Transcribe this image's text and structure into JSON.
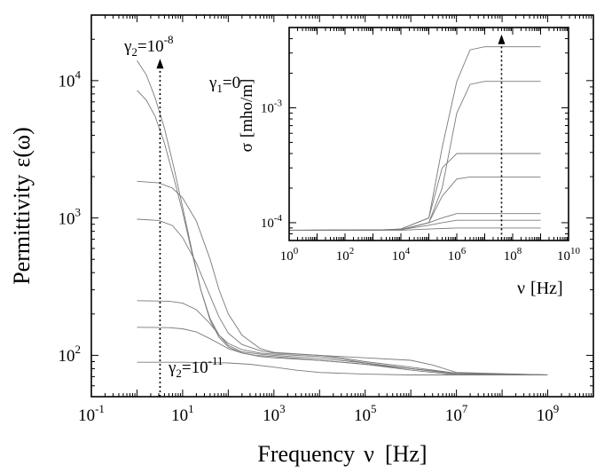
{
  "chart_data": [
    {
      "type": "line",
      "xlabel_parts": {
        "label": "Frequency",
        "symbol": "ν",
        "unit": "[Hz]"
      },
      "ylabel_parts": {
        "label": "Permittivity",
        "symbol": "ε(ω)"
      },
      "x_scale": "log",
      "y_scale": "log",
      "xlim": [
        0.1,
        10000000000
      ],
      "ylim": [
        50,
        30000
      ],
      "x_ticks": [
        {
          "v": 0.1,
          "base": "10",
          "exp": "-1"
        },
        {
          "v": 10,
          "base": "10",
          "exp": "1"
        },
        {
          "v": 1000,
          "base": "10",
          "exp": "3"
        },
        {
          "v": 100000,
          "base": "10",
          "exp": "5"
        },
        {
          "v": 10000000,
          "base": "10",
          "exp": "7"
        },
        {
          "v": 1000000000,
          "base": "10",
          "exp": "9"
        }
      ],
      "y_ticks": [
        {
          "v": 100,
          "base": "10",
          "exp": "2"
        },
        {
          "v": 1000,
          "base": "10",
          "exp": "3"
        },
        {
          "v": 10000,
          "base": "10",
          "exp": "4"
        }
      ],
      "annotations": {
        "gamma2_top": {
          "pre": "γ",
          "sub": "2",
          "mid": "=10",
          "sup": "-8"
        },
        "gamma2_bottom": {
          "pre": "γ",
          "sub": "2",
          "mid": "=10",
          "sup": "-11"
        },
        "gamma1": {
          "pre": "γ",
          "sub": "1",
          "post": "=0"
        }
      },
      "arrow": {
        "x": 3.2,
        "y_from": 50,
        "y_to": 14000,
        "direction": "up"
      },
      "series": [
        {
          "x": [
            1,
            1.6,
            2.5,
            4,
            6.3,
            10,
            16,
            25,
            40,
            63,
            100,
            200,
            400,
            1000,
            10000,
            100000,
            1000000,
            10000000,
            1000000000
          ],
          "values": [
            14000,
            11000,
            7500,
            4500,
            2400,
            1200,
            580,
            300,
            180,
            135,
            115,
            104,
            100,
            98,
            92,
            86,
            78,
            72,
            72
          ]
        },
        {
          "x": [
            1,
            1.6,
            2.5,
            4,
            6.3,
            10,
            16,
            25,
            40,
            63,
            100,
            200,
            500,
            1000,
            10000,
            100000,
            1000000,
            10000000,
            1000000000
          ],
          "values": [
            8500,
            7200,
            5500,
            3500,
            2000,
            1100,
            560,
            300,
            185,
            140,
            118,
            106,
            102,
            100,
            95,
            88,
            80,
            73,
            72
          ]
        },
        {
          "x": [
            1,
            3,
            6,
            10,
            20,
            40,
            63,
            100,
            200,
            500,
            1000,
            10000,
            100000,
            1000000,
            3000000,
            10000000,
            1000000000
          ],
          "values": [
            1850,
            1800,
            1650,
            1400,
            950,
            500,
            300,
            200,
            140,
            112,
            105,
            100,
            96,
            92,
            85,
            75,
            72
          ]
        },
        {
          "x": [
            1,
            3,
            6,
            10,
            20,
            40,
            63,
            100,
            200,
            500,
            1000,
            10000,
            30000,
            100000,
            1000000,
            10000000,
            1000000000
          ],
          "values": [
            980,
            960,
            880,
            720,
            470,
            270,
            190,
            145,
            120,
            108,
            104,
            100,
            96,
            90,
            82,
            74,
            72
          ]
        },
        {
          "x": [
            1,
            5,
            10,
            20,
            40,
            63,
            100,
            200,
            500,
            1000,
            10000,
            30000,
            100000,
            1000000,
            10000000,
            1000000000
          ],
          "values": [
            250,
            248,
            240,
            215,
            170,
            140,
            122,
            110,
            104,
            102,
            98,
            94,
            88,
            80,
            74,
            72
          ]
        },
        {
          "x": [
            1,
            5,
            10,
            20,
            40,
            100,
            200,
            500,
            1000,
            10000,
            100000,
            1000000,
            10000000,
            1000000000
          ],
          "values": [
            160,
            159,
            156,
            148,
            132,
            112,
            104,
            98,
            96,
            92,
            86,
            80,
            74,
            72
          ]
        },
        {
          "x": [
            1,
            10,
            100,
            300,
            1000,
            3000,
            10000,
            100000,
            1000000,
            10000000,
            1000000000
          ],
          "values": [
            89,
            89,
            88,
            86,
            82,
            78,
            75,
            73,
            72,
            72,
            72
          ]
        }
      ]
    },
    {
      "type": "line",
      "xlabel_parts": {
        "symbol": "ν",
        "unit": "[Hz]"
      },
      "ylabel_parts": {
        "symbol": "σ",
        "unit": "[mho/m]"
      },
      "x_scale": "log",
      "y_scale": "log",
      "xlim": [
        1,
        10000000000
      ],
      "ylim": [
        7e-05,
        0.005
      ],
      "x_ticks": [
        {
          "v": 1,
          "base": "10",
          "exp": "0"
        },
        {
          "v": 100,
          "base": "10",
          "exp": "2"
        },
        {
          "v": 10000,
          "base": "10",
          "exp": "4"
        },
        {
          "v": 1000000,
          "base": "10",
          "exp": "6"
        },
        {
          "v": 100000000,
          "base": "10",
          "exp": "8"
        },
        {
          "v": 10000000000,
          "base": "10",
          "exp": "10"
        }
      ],
      "y_ticks": [
        {
          "v": 0.0001,
          "base": "10",
          "exp": "-4"
        },
        {
          "v": 0.001,
          "base": "10",
          "exp": "-3"
        }
      ],
      "arrow": {
        "x": 40000000,
        "y_from": 7.2e-05,
        "y_to": 0.0042,
        "direction": "up"
      },
      "series": [
        {
          "x": [
            1,
            1000,
            10000,
            100000,
            300000,
            1000000,
            3000000,
            10000000,
            1000000000
          ],
          "values": [
            8.6e-05,
            8.6e-05,
            8.8e-05,
            0.00011,
            0.00045,
            0.0017,
            0.0032,
            0.0034,
            0.0034
          ]
        },
        {
          "x": [
            1,
            1000,
            10000,
            100000,
            300000,
            1000000,
            3000000,
            10000000,
            1000000000
          ],
          "values": [
            8.6e-05,
            8.6e-05,
            8.7e-05,
            0.0001,
            0.0002,
            0.0009,
            0.0016,
            0.0017,
            0.0017
          ]
        },
        {
          "x": [
            1,
            1000,
            10000,
            100000,
            300000,
            1000000,
            3000000,
            1000000000
          ],
          "values": [
            8.6e-05,
            8.6e-05,
            8.8e-05,
            0.00011,
            0.0003,
            0.0004,
            0.0004,
            0.0004
          ]
        },
        {
          "x": [
            1,
            1000,
            10000,
            100000,
            300000,
            1000000,
            3000000,
            1000000000
          ],
          "values": [
            8.6e-05,
            8.6e-05,
            8.7e-05,
            0.0001,
            0.00017,
            0.00024,
            0.00025,
            0.00025
          ]
        },
        {
          "x": [
            1,
            10000,
            100000,
            300000,
            1000000,
            1000000000
          ],
          "values": [
            8.6e-05,
            8.7e-05,
            0.0001,
            0.00011,
            0.00012,
            0.00012
          ]
        },
        {
          "x": [
            1,
            10000,
            100000,
            300000,
            1000000,
            1000000000
          ],
          "values": [
            8.6e-05,
            8.7e-05,
            9.5e-05,
            0.0001,
            0.000105,
            0.000105
          ]
        },
        {
          "x": [
            1,
            10000,
            100000,
            1000000,
            1000000000
          ],
          "values": [
            8.6e-05,
            8.6e-05,
            8.8e-05,
            9e-05,
            9e-05
          ]
        }
      ]
    }
  ]
}
